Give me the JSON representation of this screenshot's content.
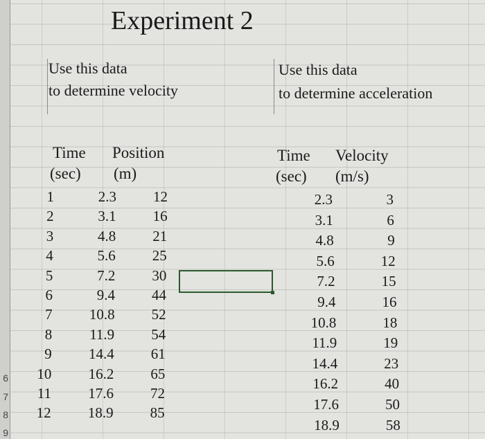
{
  "title": "Experiment 2",
  "left_note": [
    "Use this data",
    "to determine velocity"
  ],
  "right_note": [
    "Use this data",
    "to determine acceleration"
  ],
  "left_table": {
    "headers": [
      [
        "Time",
        "(sec)"
      ],
      [
        "Position",
        "(m)"
      ]
    ],
    "rows": [
      {
        "n": "1",
        "time": "2.3",
        "pos": "12"
      },
      {
        "n": "2",
        "time": "3.1",
        "pos": "16"
      },
      {
        "n": "3",
        "time": "4.8",
        "pos": "21"
      },
      {
        "n": "4",
        "time": "5.6",
        "pos": "25"
      },
      {
        "n": "5",
        "time": "7.2",
        "pos": "30"
      },
      {
        "n": "6",
        "time": "9.4",
        "pos": "44"
      },
      {
        "n": "7",
        "time": "10.8",
        "pos": "52"
      },
      {
        "n": "8",
        "time": "11.9",
        "pos": "54"
      },
      {
        "n": "9",
        "time": "14.4",
        "pos": "61"
      },
      {
        "n": "10",
        "time": "16.2",
        "pos": "65"
      },
      {
        "n": "11",
        "time": "17.6",
        "pos": "72"
      },
      {
        "n": "12",
        "time": "18.9",
        "pos": "85"
      }
    ]
  },
  "right_table": {
    "headers": [
      [
        "Time",
        "(sec)"
      ],
      [
        "Velocity",
        "(m/s)"
      ]
    ],
    "rows": [
      {
        "time": "2.3",
        "vel": "3"
      },
      {
        "time": "3.1",
        "vel": "6"
      },
      {
        "time": "4.8",
        "vel": "9"
      },
      {
        "time": "5.6",
        "vel": "12"
      },
      {
        "time": "7.2",
        "vel": "15"
      },
      {
        "time": "9.4",
        "vel": "16"
      },
      {
        "time": "10.8",
        "vel": "18"
      },
      {
        "time": "11.9",
        "vel": "19"
      },
      {
        "time": "14.4",
        "vel": "23"
      },
      {
        "time": "16.2",
        "vel": "40"
      },
      {
        "time": "17.6",
        "vel": "50"
      },
      {
        "time": "18.9",
        "vel": "58"
      }
    ]
  },
  "row_headers": [
    "6",
    "7",
    "8",
    "9"
  ]
}
